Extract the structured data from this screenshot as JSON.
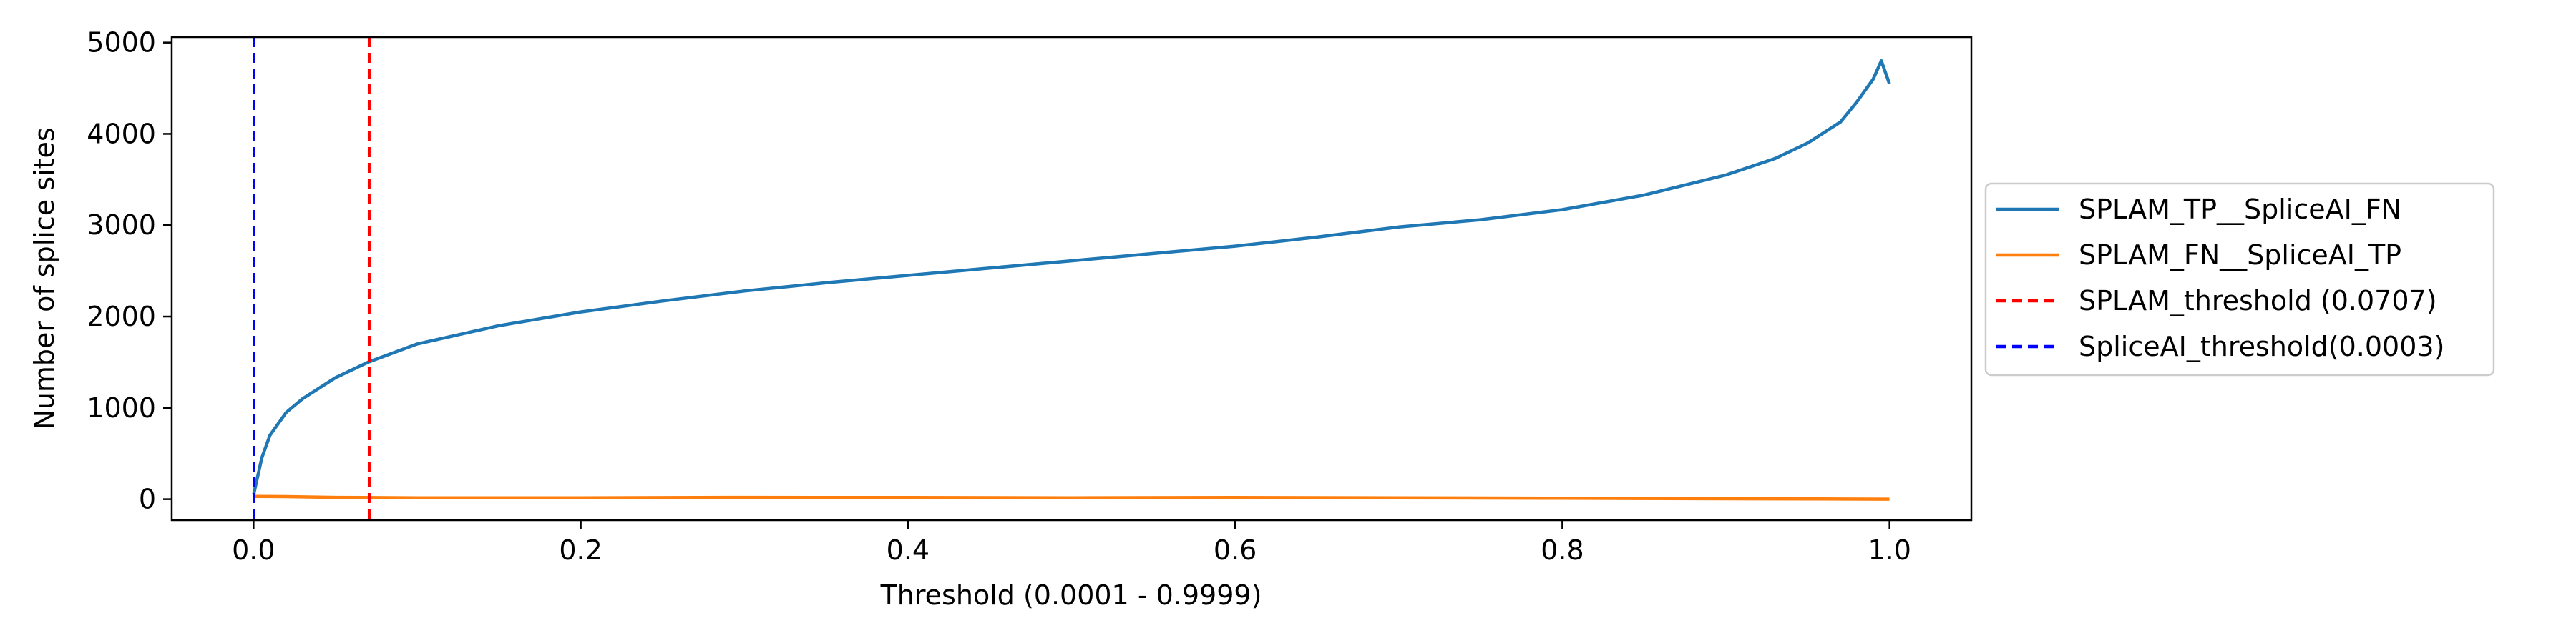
{
  "chart_data": {
    "type": "line",
    "title": "",
    "xlabel": "Threshold (0.0001 - 0.9999)",
    "ylabel": "Number of splice sites",
    "xlim": [
      -0.05,
      1.05
    ],
    "ylim": [
      -230,
      5060
    ],
    "xticks": [
      0.0,
      0.2,
      0.4,
      0.6,
      0.8,
      1.0
    ],
    "xtick_labels": [
      "0.0",
      "0.2",
      "0.4",
      "0.6",
      "0.8",
      "1.0"
    ],
    "yticks": [
      0,
      1000,
      2000,
      3000,
      4000,
      5000
    ],
    "ytick_labels": [
      "0",
      "1000",
      "2000",
      "3000",
      "4000",
      "5000"
    ],
    "grid": false,
    "legend_position": "center-right-outside",
    "series": [
      {
        "name": "SPLAM_TP__SpliceAI_FN",
        "color": "#1f77b4",
        "style": "solid",
        "x": [
          0.0001,
          0.005,
          0.01,
          0.02,
          0.03,
          0.05,
          0.07,
          0.1,
          0.15,
          0.2,
          0.25,
          0.3,
          0.35,
          0.4,
          0.45,
          0.5,
          0.55,
          0.6,
          0.65,
          0.7,
          0.75,
          0.8,
          0.85,
          0.9,
          0.93,
          0.95,
          0.97,
          0.98,
          0.99,
          0.995,
          0.9999
        ],
        "y": [
          50,
          450,
          700,
          950,
          1100,
          1330,
          1500,
          1700,
          1900,
          2050,
          2170,
          2280,
          2370,
          2450,
          2530,
          2610,
          2690,
          2770,
          2870,
          2980,
          3060,
          3170,
          3330,
          3550,
          3730,
          3900,
          4130,
          4350,
          4600,
          4800,
          4550
        ]
      },
      {
        "name": "SPLAM_FN__SpliceAI_TP",
        "color": "#ff7f0e",
        "style": "solid",
        "x": [
          0.0001,
          0.02,
          0.05,
          0.1,
          0.2,
          0.3,
          0.4,
          0.5,
          0.6,
          0.7,
          0.8,
          0.9,
          0.95,
          0.9999
        ],
        "y": [
          30,
          28,
          20,
          15,
          15,
          20,
          18,
          15,
          18,
          15,
          10,
          5,
          3,
          0
        ]
      },
      {
        "name": "SPLAM_threshold (0.0707)",
        "color": "#ff0000",
        "style": "dashed",
        "vline": 0.0707
      },
      {
        "name": "SpliceAI_threshold(0.0003)",
        "color": "#0000ff",
        "style": "dashed",
        "vline": 0.0003
      }
    ]
  }
}
